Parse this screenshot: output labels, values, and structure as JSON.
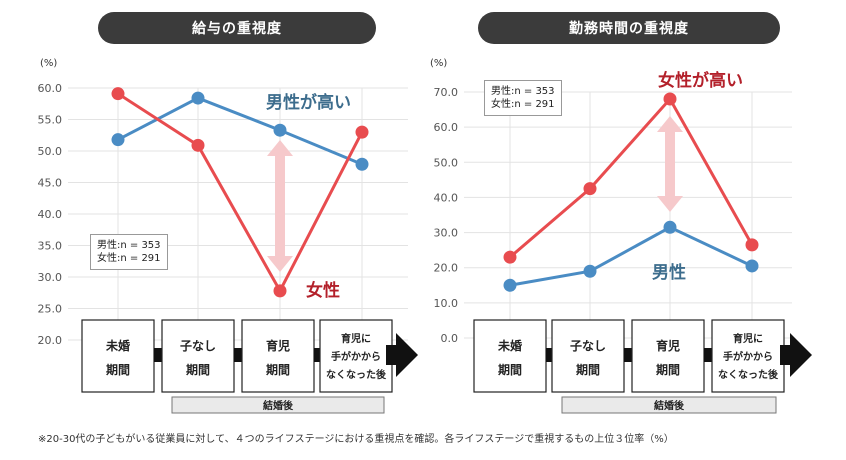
{
  "chart_data": [
    {
      "type": "line",
      "title": "給与の重視度",
      "unit_label": "(%)",
      "ylim": [
        20,
        60
      ],
      "yticks": [
        "60.0",
        "55.0",
        "50.0",
        "45.0",
        "40.0",
        "35.0",
        "30.0",
        "25.0",
        "20.0"
      ],
      "categories": [
        "未婚期間",
        "子なし期間",
        "育児期間",
        "育児に手がかからなくなった後"
      ],
      "series": [
        {
          "name": "男性",
          "color": "#4a8cc4",
          "values": [
            51.8,
            58.4,
            53.3,
            47.9
          ]
        },
        {
          "name": "女性",
          "color": "#e84c4f",
          "values": [
            59.1,
            50.9,
            27.8,
            53.0
          ]
        }
      ],
      "legend": [
        "男性:n = 353",
        "女性:n = 291"
      ],
      "annotations": [
        "男性が高い",
        "女性"
      ]
    },
    {
      "type": "line",
      "title": "勤務時間の重視度",
      "unit_label": "(%)",
      "ylim": [
        0,
        70
      ],
      "yticks": [
        "70.0",
        "60.0",
        "50.0",
        "40.0",
        "30.0",
        "20.0",
        "10.0",
        "0.0"
      ],
      "categories": [
        "未婚期間",
        "子なし期間",
        "育児期間",
        "育児に手がかからなくなった後"
      ],
      "series": [
        {
          "name": "男性",
          "color": "#4a8cc4",
          "values": [
            15.0,
            19.0,
            31.5,
            20.5
          ]
        },
        {
          "name": "女性",
          "color": "#e84c4f",
          "values": [
            23.0,
            42.5,
            68.0,
            26.5
          ]
        }
      ],
      "legend": [
        "男性:n = 353",
        "女性:n = 291"
      ],
      "annotations": [
        "女性が高い",
        "男性"
      ]
    }
  ],
  "stages": [
    {
      "line1": "未婚",
      "line2": "期間"
    },
    {
      "line1": "子なし",
      "line2": "期間"
    },
    {
      "line1": "育児",
      "line2": "期間"
    },
    {
      "line1": "育児に",
      "line2": "手がかから",
      "line3": "なくなった後"
    }
  ],
  "married_label": "結婚後",
  "footnote": "※20-30代の子どもがいる従業員に対して、４つのライフステージにおける重視点を確認。各ライフステージで重視するもの上位３位率（%）"
}
